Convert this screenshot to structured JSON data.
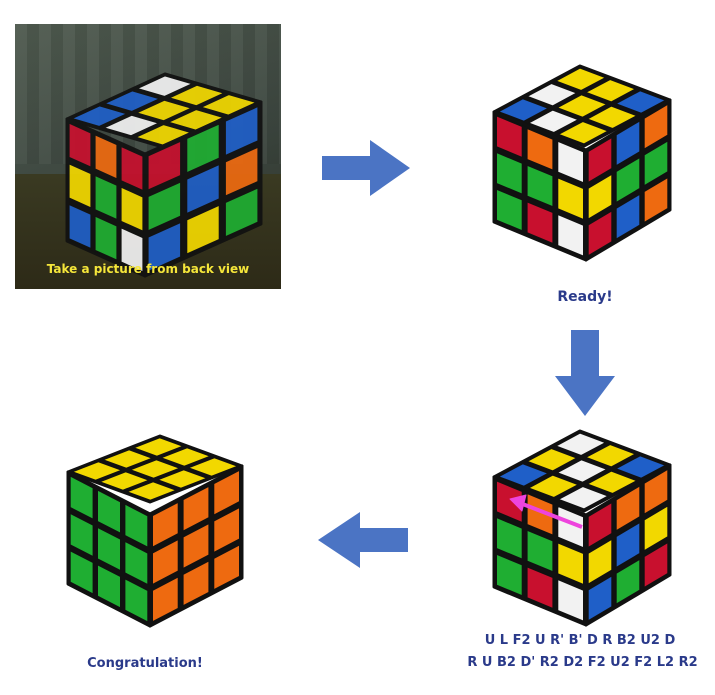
{
  "photo_caption": "Take a picture from back view",
  "status_ready": "Ready!",
  "status_done": "Congratulation!",
  "solution_moves": {
    "line1": "U L F2 U R' B' D R B2 U2 D",
    "line2": "R U B2 D' R2 D2 F2 U2 F2 L2 R2"
  },
  "colors": {
    "arrow": "#4b74c4",
    "move_hint": "#ee44dd",
    "yellow": "#f2d800",
    "red": "#c8102e",
    "green": "#1fae32",
    "blue": "#1f5fc8",
    "orange": "#ee6a10",
    "white": "#f2f2f2"
  },
  "cubes": {
    "scrambled": {
      "top": [
        [
          "Y",
          "Y",
          "B"
        ],
        [
          "W",
          "Y",
          "Y"
        ],
        [
          "B",
          "W",
          "Y"
        ]
      ],
      "left": [
        [
          "R",
          "O",
          "W"
        ],
        [
          "G",
          "G",
          "Y"
        ],
        [
          "G",
          "R",
          "W"
        ]
      ],
      "right": [
        [
          "R",
          "B",
          "O"
        ],
        [
          "Y",
          "G",
          "G"
        ],
        [
          "R",
          "B",
          "O"
        ]
      ]
    },
    "solving": {
      "top": [
        [
          "W",
          "Y",
          "B"
        ],
        [
          "Y",
          "W",
          "Y"
        ],
        [
          "B",
          "Y",
          "W"
        ]
      ],
      "left": [
        [
          "R",
          "O",
          "W"
        ],
        [
          "G",
          "G",
          "Y"
        ],
        [
          "G",
          "R",
          "W"
        ]
      ],
      "right": [
        [
          "R",
          "O",
          "O"
        ],
        [
          "Y",
          "B",
          "Y"
        ],
        [
          "B",
          "G",
          "R"
        ]
      ]
    },
    "solved": {
      "top": [
        [
          "Y",
          "Y",
          "Y"
        ],
        [
          "Y",
          "Y",
          "Y"
        ],
        [
          "Y",
          "Y",
          "Y"
        ]
      ],
      "left": [
        [
          "G",
          "G",
          "G"
        ],
        [
          "G",
          "G",
          "G"
        ],
        [
          "G",
          "G",
          "G"
        ]
      ],
      "right": [
        [
          "O",
          "O",
          "O"
        ],
        [
          "O",
          "O",
          "O"
        ],
        [
          "O",
          "O",
          "O"
        ]
      ]
    }
  },
  "photo_cube": {
    "top": [
      [
        "W",
        "Y",
        "Y"
      ],
      [
        "B",
        "Y",
        "Y"
      ],
      [
        "B",
        "W",
        "Y"
      ]
    ],
    "left": [
      [
        "R",
        "O",
        "R"
      ],
      [
        "Y",
        "G",
        "Y"
      ],
      [
        "B",
        "G",
        "W"
      ]
    ],
    "right": [
      [
        "R",
        "G",
        "B"
      ],
      [
        "G",
        "B",
        "O"
      ],
      [
        "B",
        "Y",
        "G"
      ]
    ]
  }
}
